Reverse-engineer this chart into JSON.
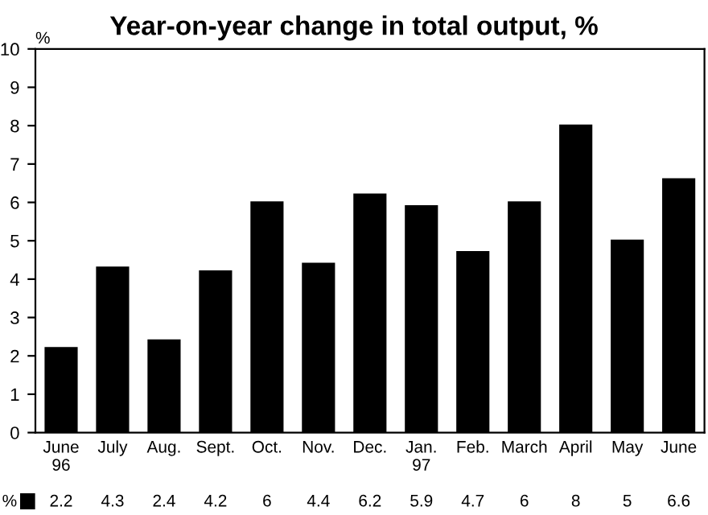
{
  "chart_data": {
    "type": "bar",
    "title": "Year-on-year change in total output, %",
    "ylabel": "%",
    "categories": [
      "June\n96",
      "July",
      "Aug.",
      "Sept.",
      "Oct.",
      "Nov.",
      "Dec.",
      "Jan.\n97",
      "Feb.",
      "March",
      "April",
      "May",
      "June"
    ],
    "series": [
      {
        "name": "%",
        "color": "#000000",
        "values": [
          2.2,
          4.3,
          2.4,
          4.2,
          6,
          4.4,
          6.2,
          5.9,
          4.7,
          6,
          8,
          5,
          6.6
        ]
      }
    ],
    "ylim": [
      0,
      10
    ],
    "yticks": [
      0,
      1,
      2,
      3,
      4,
      5,
      6,
      7,
      8,
      9,
      10
    ],
    "grid": false,
    "data_labels": true
  }
}
